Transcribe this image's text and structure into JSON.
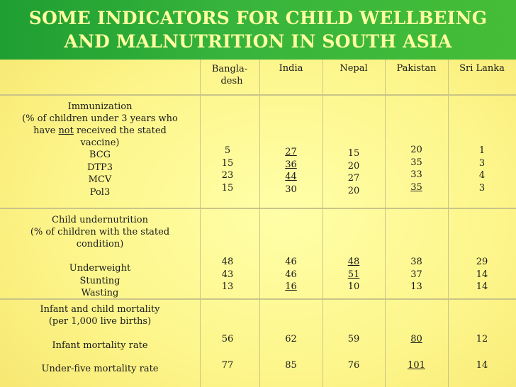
{
  "title": {
    "line1": "SOME INDICATORS FOR CHILD WELLBEING",
    "line2": "AND MALNUTRITION IN SOUTH ASIA"
  },
  "columns": {
    "bangladesh_1": "Bangla-",
    "bangladesh_2": "desh",
    "india": "India",
    "nepal": "Nepal",
    "pakistan": "Pakistan",
    "srilanka": "Sri Lanka"
  },
  "immunization": {
    "title": "Immunization",
    "desc1": "(% of children under 3 years who",
    "desc2_pre": "have ",
    "desc2_not": "not",
    "desc2_post": " received the stated",
    "desc3": "vaccine)",
    "labels": [
      "BCG",
      "DTP3",
      "MCV",
      "Pol3"
    ],
    "bangladesh": [
      "5",
      "15",
      "23",
      "15"
    ],
    "india": [
      "27",
      "36",
      "44",
      "30"
    ],
    "nepal": [
      "15",
      "20",
      "27",
      "20"
    ],
    "pakistan": [
      "20",
      "35",
      "33",
      "35"
    ],
    "srilanka": [
      "1",
      "3",
      "4",
      "3"
    ]
  },
  "undernutrition": {
    "title": "Child undernutrition",
    "desc1": "(% of children with the stated",
    "desc2": "condition)",
    "labels": [
      "Underweight",
      "Stunting",
      "Wasting"
    ],
    "bangladesh": [
      "48",
      "43",
      "13"
    ],
    "india": [
      "46",
      "46",
      "16"
    ],
    "nepal": [
      "48",
      "51",
      "10"
    ],
    "pakistan": [
      "38",
      "37",
      "13"
    ],
    "srilanka": [
      "29",
      "14",
      "14"
    ]
  },
  "mortality": {
    "title": "Infant and child mortality",
    "desc": "(per 1,000 live births)",
    "infant_label": "Infant mortality rate",
    "under5_label": "Under-five mortality rate",
    "infant": {
      "bangladesh": "56",
      "india": "62",
      "nepal": "59",
      "pakistan": "80",
      "srilanka": "12"
    },
    "under5": {
      "bangladesh": "77",
      "india": "85",
      "nepal": "76",
      "pakistan": "101",
      "srilanka": "14"
    }
  },
  "colors": {
    "title_bg": "#2faa37",
    "title_text": "#ffffa0",
    "body_bg": "#fdf58a",
    "grid_line": "#c9c489"
  }
}
